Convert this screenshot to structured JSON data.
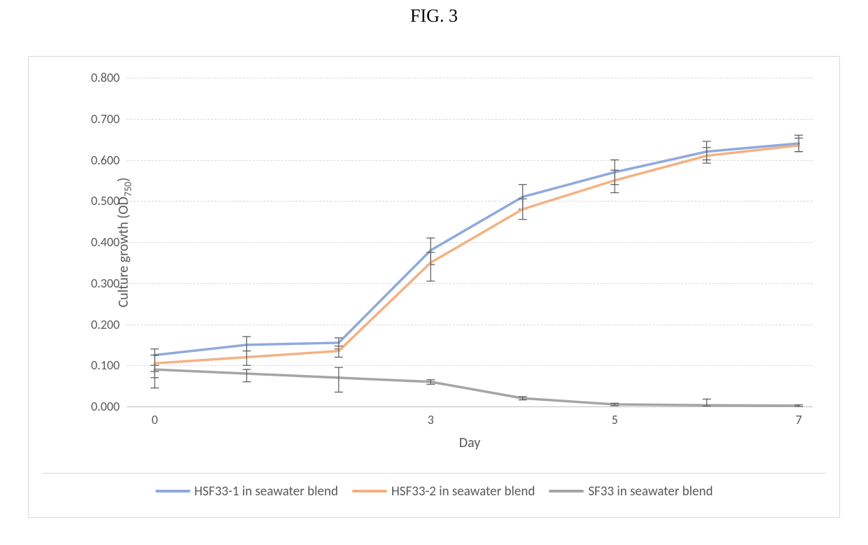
{
  "figure_label": "FIG. 3",
  "chart": {
    "type": "line",
    "background_color": "#ffffff",
    "outer_border_color": "#d9d9d9",
    "grid_color": "#d9d9d9",
    "baseline_color": "#bfbfbf",
    "text_color": "#595959",
    "tick_fontsize": 18,
    "axis_title_fontsize": 20,
    "title_font_family": "Times New Roman",
    "title_fontsize": 26,
    "xaxis": {
      "title": "Day",
      "categories": [
        0,
        1,
        2,
        3,
        4,
        5,
        6,
        7
      ],
      "tick_show": [
        true,
        false,
        false,
        true,
        false,
        true,
        false,
        true
      ]
    },
    "yaxis": {
      "title_html": "Culture growth (OD<sub>750</sub>)",
      "ylim": [
        0.0,
        0.8
      ],
      "ytick_step": 0.1,
      "tick_decimals": 3
    },
    "line_width": 3.5,
    "error_bar": {
      "color": "#595959",
      "cap_width": 12,
      "stroke_width": 1.2
    },
    "series": [
      {
        "name": "HSF33-1 in seawater blend",
        "color": "#8faadc",
        "y": [
          0.125,
          0.15,
          0.155,
          0.38,
          0.51,
          0.57,
          0.62,
          0.64
        ],
        "err_low": [
          0.04,
          0.03,
          0.015,
          0.035,
          0.03,
          0.03,
          0.02,
          0.02
        ],
        "err_high": [
          0.015,
          0.02,
          0.012,
          0.03,
          0.03,
          0.03,
          0.025,
          0.02
        ]
      },
      {
        "name": "HSF33-2 in seawater blend",
        "color": "#f4b183",
        "y": [
          0.105,
          0.12,
          0.135,
          0.35,
          0.48,
          0.55,
          0.61,
          0.635
        ],
        "err_low": [
          0.035,
          0.02,
          0.015,
          0.045,
          0.025,
          0.03,
          0.018,
          0.015
        ],
        "err_high": [
          0.02,
          0.015,
          0.012,
          0.025,
          0.025,
          0.025,
          0.02,
          0.018
        ]
      },
      {
        "name": "SF33 in seawater blend",
        "color": "#a5a5a5",
        "y": [
          0.09,
          0.08,
          0.07,
          0.06,
          0.02,
          0.005,
          0.003,
          0.002
        ],
        "err_low": [
          0.045,
          0.02,
          0.035,
          0.006,
          0.004,
          0.003,
          0.002,
          0.002
        ],
        "err_high": [
          0.01,
          0.01,
          0.025,
          0.005,
          0.004,
          0.003,
          0.015,
          0.002
        ]
      }
    ]
  }
}
